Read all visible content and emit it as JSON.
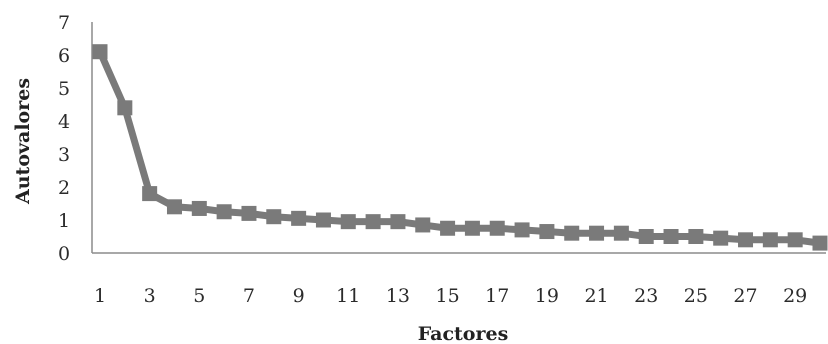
{
  "chart_data": {
    "type": "line",
    "title": "",
    "xlabel": "Factores",
    "ylabel": "Autovalores",
    "x": [
      1,
      2,
      3,
      4,
      5,
      6,
      7,
      8,
      9,
      10,
      11,
      12,
      13,
      14,
      15,
      16,
      17,
      18,
      19,
      20,
      21,
      22,
      23,
      24,
      25,
      26,
      27,
      28,
      29,
      30
    ],
    "x_tick_labels": [
      "1",
      "3",
      "5",
      "7",
      "9",
      "11",
      "13",
      "15",
      "17",
      "19",
      "21",
      "23",
      "25",
      "27",
      "29"
    ],
    "y_tick_labels": [
      "0",
      "1",
      "2",
      "3",
      "4",
      "5",
      "6",
      "7"
    ],
    "ylim": [
      0,
      7
    ],
    "xlim": [
      1,
      30
    ],
    "grid": false,
    "legend": "none",
    "series": [
      {
        "values": [
          6.1,
          4.4,
          1.8,
          1.4,
          1.35,
          1.25,
          1.2,
          1.1,
          1.05,
          1.0,
          0.95,
          0.95,
          0.95,
          0.85,
          0.75,
          0.75,
          0.75,
          0.7,
          0.65,
          0.6,
          0.6,
          0.6,
          0.5,
          0.5,
          0.5,
          0.45,
          0.4,
          0.4,
          0.4,
          0.3
        ],
        "color": "#7a7a7a"
      }
    ]
  }
}
